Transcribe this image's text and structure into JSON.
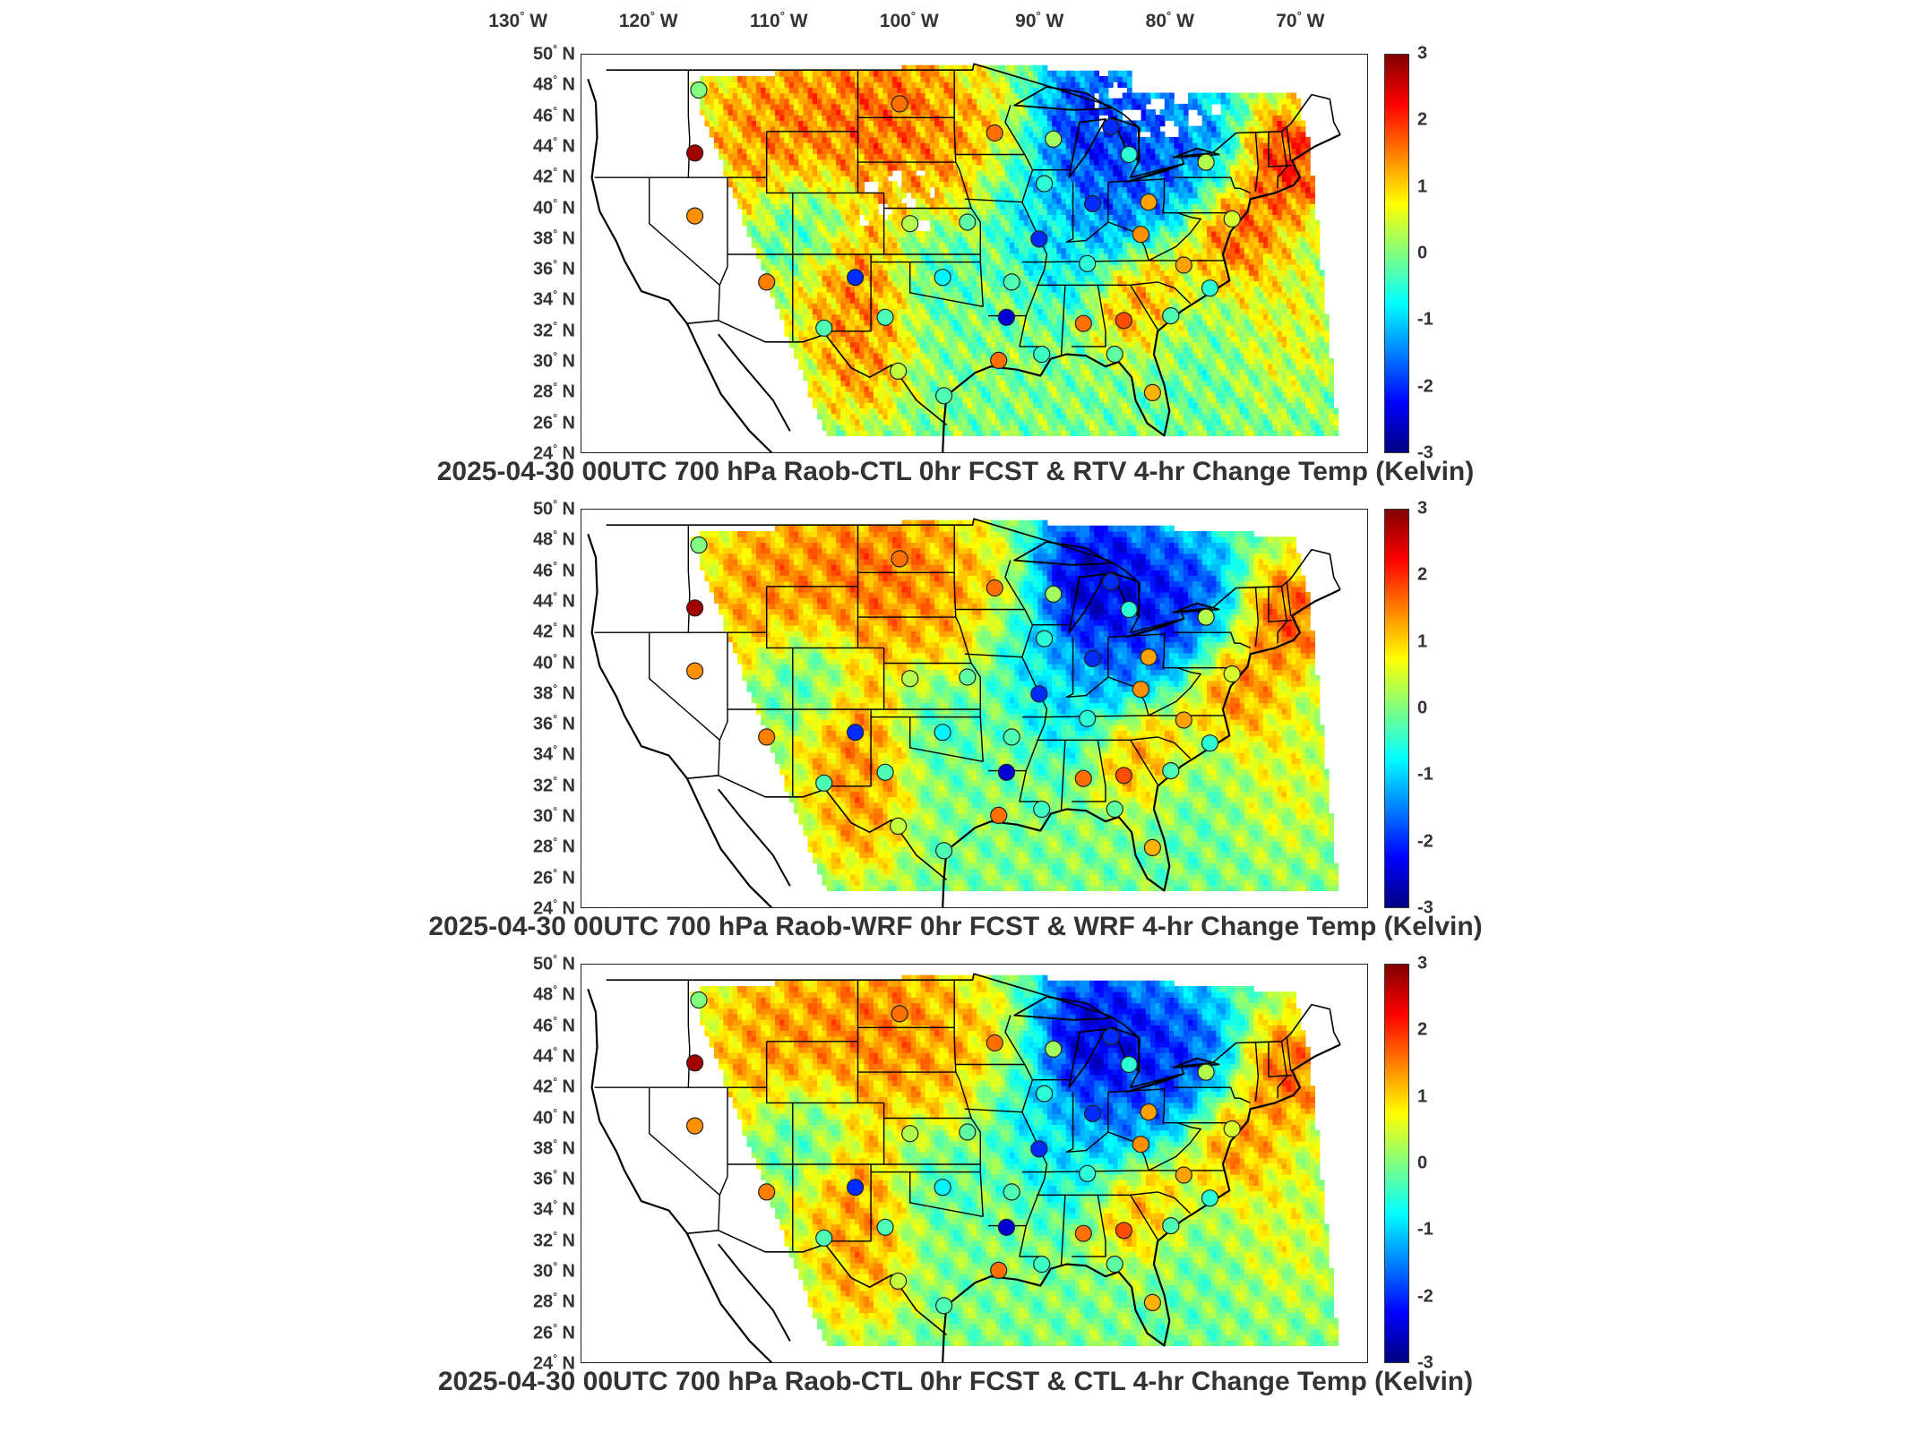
{
  "top_lon_labels": [
    {
      "deg": "130",
      "hem": "W"
    },
    {
      "deg": "120",
      "hem": "W"
    },
    {
      "deg": "110",
      "hem": "W"
    },
    {
      "deg": "100",
      "hem": "W"
    },
    {
      "deg": "90",
      "hem": "W"
    },
    {
      "deg": "80",
      "hem": "W"
    },
    {
      "deg": "70",
      "hem": "W"
    }
  ],
  "lat_labels": [
    {
      "deg": "50",
      "hem": "N"
    },
    {
      "deg": "48",
      "hem": "N"
    },
    {
      "deg": "46",
      "hem": "N"
    },
    {
      "deg": "44",
      "hem": "N"
    },
    {
      "deg": "42",
      "hem": "N"
    },
    {
      "deg": "40",
      "hem": "N"
    },
    {
      "deg": "38",
      "hem": "N"
    },
    {
      "deg": "36",
      "hem": "N"
    },
    {
      "deg": "34",
      "hem": "N"
    },
    {
      "deg": "32",
      "hem": "N"
    },
    {
      "deg": "30",
      "hem": "N"
    },
    {
      "deg": "28",
      "hem": "N"
    },
    {
      "deg": "26",
      "hem": "N"
    },
    {
      "deg": "24",
      "hem": "N"
    }
  ],
  "colorbar": {
    "range": [
      -3,
      3
    ],
    "ticks": [
      "3",
      "2",
      "1",
      "0",
      "-1",
      "-2",
      "-3"
    ],
    "colors": [
      "#000080",
      "#0000ff",
      "#0080ff",
      "#00ffff",
      "#80ff80",
      "#ffff00",
      "#ff8000",
      "#ff0000",
      "#800000"
    ]
  },
  "panels": [
    {
      "title": "2025-04-30 00UTC 700 hPa Raob-CTL 0hr FCST & RTV 4-hr Change Temp (Kelvin)",
      "kind": "rtv"
    },
    {
      "title": "2025-04-30 00UTC 700 hPa Raob-WRF 0hr FCST & WRF 4-hr Change Temp (Kelvin)",
      "kind": "wrf"
    },
    {
      "title": "2025-04-30 00UTC 700 hPa Raob-CTL 0hr FCST & CTL 4-hr Change Temp (Kelvin)",
      "kind": "ctl"
    }
  ],
  "raob_stations": [
    {
      "lon": -116.2,
      "lat": 47.7,
      "v": 0.0
    },
    {
      "lon": -116.5,
      "lat": 43.6,
      "v": 2.8
    },
    {
      "lon": -116.5,
      "lat": 39.5,
      "v": 1.4
    },
    {
      "lon": -100.8,
      "lat": 46.8,
      "v": 1.6
    },
    {
      "lon": -93.5,
      "lat": 44.9,
      "v": 1.6
    },
    {
      "lon": -89.0,
      "lat": 44.5,
      "v": 0.2
    },
    {
      "lon": -84.6,
      "lat": 45.3,
      "v": -2.0
    },
    {
      "lon": -83.2,
      "lat": 43.5,
      "v": -0.5
    },
    {
      "lon": -89.7,
      "lat": 41.6,
      "v": -0.5
    },
    {
      "lon": -86.0,
      "lat": 40.3,
      "v": -2.0
    },
    {
      "lon": -81.7,
      "lat": 40.4,
      "v": 1.3
    },
    {
      "lon": -77.3,
      "lat": 43.0,
      "v": 0.3
    },
    {
      "lon": -75.3,
      "lat": 39.3,
      "v": 0.5
    },
    {
      "lon": -95.6,
      "lat": 39.1,
      "v": -0.2
    },
    {
      "lon": -100.0,
      "lat": 39.0,
      "v": 0.3
    },
    {
      "lon": -90.1,
      "lat": 38.0,
      "v": -2.0
    },
    {
      "lon": -82.3,
      "lat": 38.3,
      "v": 1.4
    },
    {
      "lon": -79.0,
      "lat": 36.3,
      "v": 1.3
    },
    {
      "lon": -86.4,
      "lat": 36.4,
      "v": -0.5
    },
    {
      "lon": -92.2,
      "lat": 35.2,
      "v": -0.3
    },
    {
      "lon": -97.5,
      "lat": 35.5,
      "v": -0.8
    },
    {
      "lon": -104.2,
      "lat": 35.5,
      "v": -2.0
    },
    {
      "lon": -111.0,
      "lat": 35.2,
      "v": 1.5
    },
    {
      "lon": -106.6,
      "lat": 32.2,
      "v": -0.3
    },
    {
      "lon": -101.9,
      "lat": 32.9,
      "v": -0.3
    },
    {
      "lon": -92.6,
      "lat": 32.9,
      "v": -2.5
    },
    {
      "lon": -86.7,
      "lat": 32.5,
      "v": 1.6
    },
    {
      "lon": -83.6,
      "lat": 32.7,
      "v": 1.8
    },
    {
      "lon": -80.0,
      "lat": 33.0,
      "v": -0.3
    },
    {
      "lon": -77.0,
      "lat": 34.8,
      "v": -0.5
    },
    {
      "lon": -93.2,
      "lat": 30.1,
      "v": 1.6
    },
    {
      "lon": -89.9,
      "lat": 30.5,
      "v": -0.4
    },
    {
      "lon": -84.3,
      "lat": 30.5,
      "v": -0.2
    },
    {
      "lon": -81.4,
      "lat": 28.0,
      "v": 1.2
    },
    {
      "lon": -100.9,
      "lat": 29.4,
      "v": 0.4
    },
    {
      "lon": -97.4,
      "lat": 27.8,
      "v": -0.3
    }
  ]
}
